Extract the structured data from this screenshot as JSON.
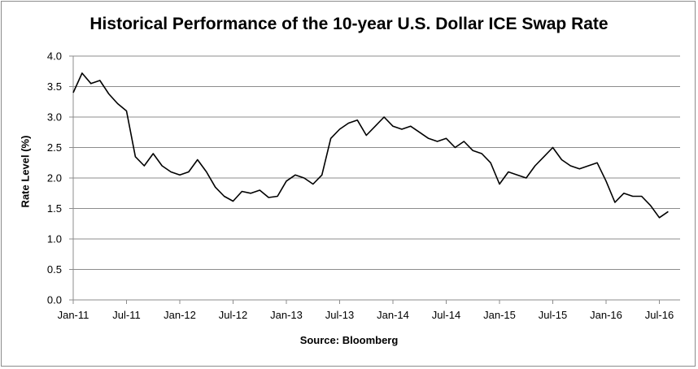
{
  "chart_data": {
    "type": "line",
    "title": "Historical Performance of the 10-year U.S. Dollar ICE Swap Rate",
    "ylabel": "Rate Level (%)",
    "xlabel": "",
    "source": "Source: Bloomberg",
    "ylim": [
      0,
      4
    ],
    "yticks": [
      "0.0",
      "0.5",
      "1.0",
      "1.5",
      "2.0",
      "2.5",
      "3.0",
      "3.5",
      "4.0"
    ],
    "xticks": [
      "Jan-11",
      "Jul-11",
      "Jan-12",
      "Jul-12",
      "Jan-13",
      "Jul-13",
      "Jan-14",
      "Jul-14",
      "Jan-15",
      "Jul-15",
      "Jan-16",
      "Jul-16"
    ],
    "grid": true,
    "legend": "none",
    "line_color": "#000000",
    "series": [
      {
        "x": [
          "Jan-11",
          "Feb-11",
          "Mar-11",
          "Apr-11",
          "May-11",
          "Jun-11",
          "Jul-11",
          "Aug-11",
          "Sep-11",
          "Oct-11",
          "Nov-11",
          "Dec-11",
          "Jan-12",
          "Feb-12",
          "Mar-12",
          "Apr-12",
          "May-12",
          "Jun-12",
          "Jul-12",
          "Aug-12",
          "Sep-12",
          "Oct-12",
          "Nov-12",
          "Dec-12",
          "Jan-13",
          "Feb-13",
          "Mar-13",
          "Apr-13",
          "May-13",
          "Jun-13",
          "Jul-13",
          "Aug-13",
          "Sep-13",
          "Oct-13",
          "Nov-13",
          "Dec-13",
          "Jan-14",
          "Feb-14",
          "Mar-14",
          "Apr-14",
          "May-14",
          "Jun-14",
          "Jul-14",
          "Aug-14",
          "Sep-14",
          "Oct-14",
          "Nov-14",
          "Dec-14",
          "Jan-15",
          "Feb-15",
          "Mar-15",
          "Apr-15",
          "May-15",
          "Jun-15",
          "Jul-15",
          "Aug-15",
          "Sep-15",
          "Oct-15",
          "Nov-15",
          "Dec-15",
          "Jan-16",
          "Feb-16",
          "Mar-16",
          "Apr-16",
          "May-16",
          "Jun-16",
          "Jul-16",
          "Aug-16"
        ],
        "values": [
          3.4,
          3.72,
          3.55,
          3.6,
          3.38,
          3.22,
          3.1,
          2.35,
          2.2,
          2.4,
          2.2,
          2.1,
          2.05,
          2.1,
          2.3,
          2.1,
          1.85,
          1.7,
          1.62,
          1.78,
          1.75,
          1.8,
          1.68,
          1.7,
          1.95,
          2.05,
          2.0,
          1.9,
          2.05,
          2.65,
          2.8,
          2.9,
          2.95,
          2.7,
          2.85,
          3.0,
          2.85,
          2.8,
          2.85,
          2.75,
          2.65,
          2.6,
          2.65,
          2.5,
          2.6,
          2.45,
          2.4,
          2.25,
          1.9,
          2.1,
          2.05,
          2.0,
          2.2,
          2.35,
          2.5,
          2.3,
          2.2,
          2.15,
          2.2,
          2.25,
          1.95,
          1.6,
          1.75,
          1.7,
          1.7,
          1.55,
          1.35,
          1.45
        ]
      }
    ]
  }
}
